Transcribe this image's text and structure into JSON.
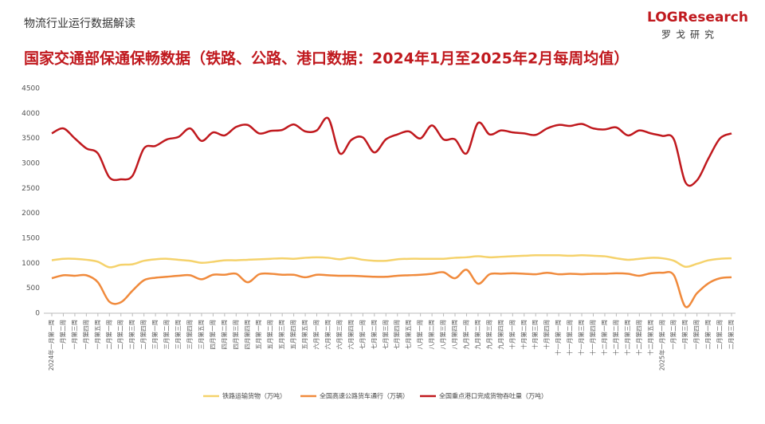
{
  "header": "物流行业运行数据解读",
  "logo": {
    "text": "LOGResearch",
    "sub": "罗戈研究"
  },
  "chart_data": {
    "type": "line",
    "title": "国家交通部保通保畅数据（铁路、公路、港口数据：2024年1月至2025年2月每周均值）",
    "categories": [
      "2024年一月第一周",
      "一月第二周",
      "一月第三周",
      "一月第四周",
      "一月第五周",
      "二月第一周",
      "二月第二周",
      "二月第三周",
      "二月第四周",
      "三月第一周",
      "三月第二周",
      "三月第三周",
      "三月第四周",
      "三月第五周",
      "四月第一周",
      "四月第二周",
      "四月第三周",
      "四月第四周",
      "五月第一周",
      "五月第二周",
      "五月第三周",
      "五月第四周",
      "五月第五周",
      "六月第一周",
      "六月第二周",
      "六月第三周",
      "六月第四周",
      "七月第一周",
      "七月第二周",
      "七月第三周",
      "七月第四周",
      "七月第五周",
      "八月第一周",
      "八月第二周",
      "八月第三周",
      "八月第四周",
      "九月第一周",
      "九月第二周",
      "九月第三周",
      "九月第四周",
      "十月第一周",
      "十月第二周",
      "十月第三周",
      "十月第四周",
      "十一月第一周",
      "十一月第二周",
      "十一月第三周",
      "十一月第四周",
      "十二月第一周",
      "十二月第二周",
      "十二月第三周",
      "十二月第四周",
      "十二月第五周",
      "2025年一月第一周",
      "一月第二周",
      "一月第三周",
      "一月第四周",
      "二月第一周",
      "二月第二周",
      "二月第三周"
    ],
    "series": [
      {
        "name": "铁路运输货物（万吨）",
        "color": "#f5d26b",
        "values": [
          1060,
          1090,
          1090,
          1070,
          1030,
          920,
          970,
          980,
          1050,
          1080,
          1090,
          1070,
          1050,
          1010,
          1030,
          1060,
          1060,
          1070,
          1080,
          1090,
          1100,
          1090,
          1110,
          1120,
          1110,
          1080,
          1110,
          1070,
          1050,
          1050,
          1080,
          1090,
          1090,
          1090,
          1090,
          1110,
          1120,
          1140,
          1120,
          1130,
          1140,
          1150,
          1160,
          1160,
          1160,
          1150,
          1160,
          1150,
          1140,
          1100,
          1070,
          1090,
          1110,
          1100,
          1050,
          930,
          990,
          1060,
          1090,
          1100
        ]
      },
      {
        "name": "全国高速公路货车通行（万辆）",
        "color": "#f08a3c",
        "values": [
          700,
          760,
          750,
          760,
          620,
          230,
          220,
          450,
          660,
          710,
          730,
          750,
          760,
          680,
          770,
          770,
          790,
          620,
          780,
          790,
          770,
          770,
          720,
          770,
          760,
          750,
          750,
          740,
          730,
          730,
          750,
          760,
          770,
          790,
          820,
          700,
          870,
          590,
          780,
          790,
          800,
          790,
          780,
          810,
          780,
          790,
          780,
          790,
          790,
          800,
          790,
          750,
          800,
          810,
          760,
          130,
          400,
          600,
          700,
          720
        ]
      },
      {
        "name": "全国重点港口完成货物吞吐量（万吨）",
        "color": "#c0191e",
        "values": [
          3600,
          3700,
          3500,
          3300,
          3200,
          2720,
          2680,
          2750,
          3300,
          3350,
          3480,
          3530,
          3700,
          3450,
          3620,
          3560,
          3730,
          3770,
          3600,
          3650,
          3670,
          3780,
          3640,
          3660,
          3900,
          3200,
          3470,
          3520,
          3220,
          3480,
          3580,
          3640,
          3500,
          3760,
          3480,
          3480,
          3200,
          3810,
          3580,
          3660,
          3620,
          3600,
          3570,
          3700,
          3770,
          3750,
          3790,
          3700,
          3680,
          3720,
          3560,
          3660,
          3600,
          3550,
          3480,
          2620,
          2660,
          3100,
          3500,
          3600
        ]
      }
    ],
    "ylim": [
      0,
      4500
    ],
    "yticks": [
      0,
      500,
      1000,
      1500,
      2000,
      2500,
      3000,
      3500,
      4000,
      4500
    ],
    "grid": false,
    "legend": "bottom"
  }
}
